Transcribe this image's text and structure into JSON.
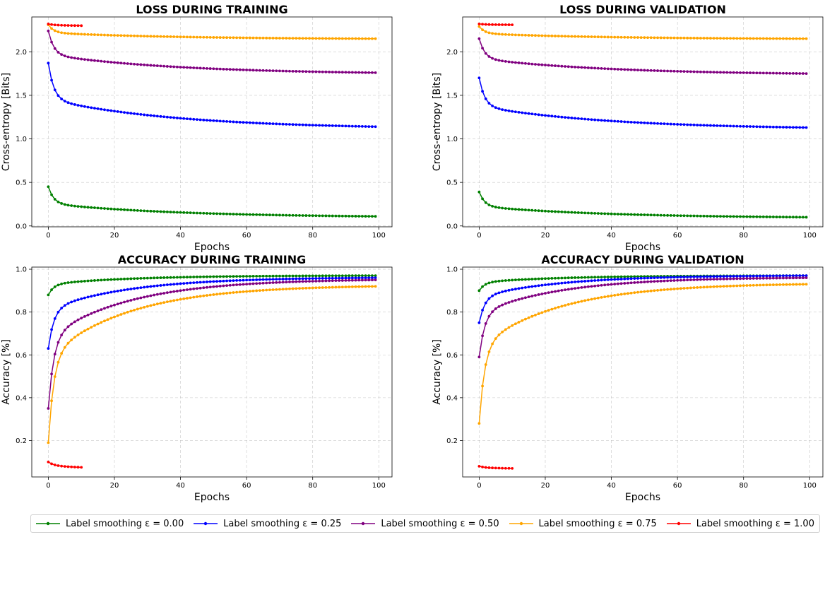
{
  "chart_data": [
    {
      "type": "line",
      "title": "LOSS DURING TRAINING",
      "xlabel": "Epochs",
      "ylabel": "Cross-entropy [Bits]",
      "xlim": [
        -5,
        104
      ],
      "ylim": [
        -0.01,
        2.4
      ],
      "xticks": [
        "0",
        "20",
        "40",
        "60",
        "80",
        "100"
      ],
      "yticks": [
        "0.0",
        "0.5",
        "1.0",
        "1.5",
        "2.0"
      ],
      "grid": true,
      "series": [
        {
          "name": "Label smoothing ε = 0.00",
          "color": "#008000",
          "epochs": 100,
          "start": 0.45,
          "end": 0.11,
          "rate": 0.025
        },
        {
          "name": "Label smoothing ε = 0.25",
          "color": "#0000ff",
          "epochs": 100,
          "start": 1.87,
          "end": 1.14,
          "rate": 0.025
        },
        {
          "name": "Label smoothing ε = 0.50",
          "color": "#800080",
          "epochs": 100,
          "start": 2.24,
          "end": 1.76,
          "rate": 0.025
        },
        {
          "name": "Label smoothing ε = 0.75",
          "color": "#ffa500",
          "epochs": 100,
          "start": 2.31,
          "end": 2.15,
          "rate": 0.025
        },
        {
          "name": "Label smoothing ε = 1.00",
          "color": "#ff0000",
          "epochs": 11,
          "start": 2.32,
          "end": 2.3,
          "rate": 0.1
        }
      ]
    },
    {
      "type": "line",
      "title": "LOSS DURING VALIDATION",
      "xlabel": "Epochs",
      "ylabel": "Cross-entropy [Bits]",
      "xlim": [
        -5,
        104
      ],
      "ylim": [
        -0.01,
        2.4
      ],
      "xticks": [
        "0",
        "20",
        "40",
        "60",
        "80",
        "100"
      ],
      "yticks": [
        "0.0",
        "0.5",
        "1.0",
        "1.5",
        "2.0"
      ],
      "grid": true,
      "series": [
        {
          "name": "Label smoothing ε = 0.00",
          "color": "#008000",
          "epochs": 100,
          "start": 0.39,
          "end": 0.1,
          "rate": 0.025
        },
        {
          "name": "Label smoothing ε = 0.25",
          "color": "#0000ff",
          "epochs": 100,
          "start": 1.7,
          "end": 1.13,
          "rate": 0.025
        },
        {
          "name": "Label smoothing ε = 0.50",
          "color": "#800080",
          "epochs": 100,
          "start": 2.15,
          "end": 1.75,
          "rate": 0.025
        },
        {
          "name": "Label smoothing ε = 0.75",
          "color": "#ffa500",
          "epochs": 100,
          "start": 2.29,
          "end": 2.15,
          "rate": 0.025
        },
        {
          "name": "Label smoothing ε = 1.00",
          "color": "#ff0000",
          "epochs": 11,
          "start": 2.32,
          "end": 2.31,
          "rate": 0.1
        }
      ]
    },
    {
      "type": "line",
      "title": "ACCURACY DURING TRAINING",
      "xlabel": "Epochs",
      "ylabel": "Accuracy [%]",
      "xlim": [
        -5,
        104
      ],
      "ylim": [
        0.03,
        1.01
      ],
      "xticks": [
        "0",
        "20",
        "40",
        "60",
        "80",
        "100"
      ],
      "yticks": [
        "0.2",
        "0.4",
        "0.6",
        "0.8",
        "1.0"
      ],
      "grid": true,
      "series": [
        {
          "name": "Label smoothing ε = 0.00",
          "color": "#008000",
          "epochs": 100,
          "start": 0.88,
          "end": 0.97,
          "rate": 0.04
        },
        {
          "name": "Label smoothing ε = 0.25",
          "color": "#0000ff",
          "epochs": 100,
          "start": 0.63,
          "end": 0.96,
          "rate": 0.04
        },
        {
          "name": "Label smoothing ε = 0.50",
          "color": "#800080",
          "epochs": 100,
          "start": 0.35,
          "end": 0.95,
          "rate": 0.04
        },
        {
          "name": "Label smoothing ε = 0.75",
          "color": "#ffa500",
          "epochs": 100,
          "start": 0.19,
          "end": 0.92,
          "rate": 0.04
        },
        {
          "name": "Label smoothing ε = 1.00",
          "color": "#ff0000",
          "epochs": 11,
          "start": 0.1,
          "end": 0.075,
          "rate": 0.1
        }
      ]
    },
    {
      "type": "line",
      "title": "ACCURACY DURING VALIDATION",
      "xlabel": "Epochs",
      "ylabel": "Accuracy [%]",
      "xlim": [
        -5,
        104
      ],
      "ylim": [
        0.03,
        1.01
      ],
      "xticks": [
        "0",
        "20",
        "40",
        "60",
        "80",
        "100"
      ],
      "yticks": [
        "0.2",
        "0.4",
        "0.6",
        "0.8",
        "1.0"
      ],
      "grid": true,
      "series": [
        {
          "name": "Label smoothing ε = 0.00",
          "color": "#008000",
          "epochs": 100,
          "start": 0.9,
          "end": 0.97,
          "rate": 0.04
        },
        {
          "name": "Label smoothing ε = 0.25",
          "color": "#0000ff",
          "epochs": 100,
          "start": 0.75,
          "end": 0.97,
          "rate": 0.04
        },
        {
          "name": "Label smoothing ε = 0.50",
          "color": "#800080",
          "epochs": 100,
          "start": 0.59,
          "end": 0.96,
          "rate": 0.04
        },
        {
          "name": "Label smoothing ε = 0.75",
          "color": "#ffa500",
          "epochs": 100,
          "start": 0.28,
          "end": 0.93,
          "rate": 0.04
        },
        {
          "name": "Label smoothing ε = 1.00",
          "color": "#ff0000",
          "epochs": 11,
          "start": 0.08,
          "end": 0.07,
          "rate": 0.1
        }
      ]
    }
  ],
  "legend": {
    "placement": "bottom",
    "items": [
      {
        "label": "Label smoothing ε = 0.00",
        "color": "#008000"
      },
      {
        "label": "Label smoothing ε = 0.25",
        "color": "#0000ff"
      },
      {
        "label": "Label smoothing ε = 0.50",
        "color": "#800080"
      },
      {
        "label": "Label smoothing ε = 0.75",
        "color": "#ffa500"
      },
      {
        "label": "Label smoothing ε = 1.00",
        "color": "#ff0000"
      }
    ]
  }
}
